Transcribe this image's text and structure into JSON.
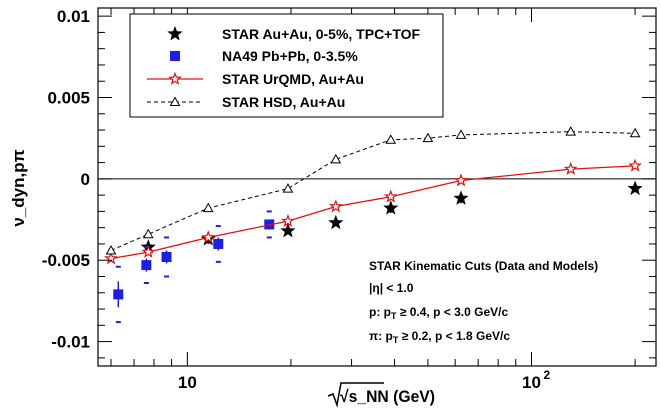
{
  "chart_data": {
    "type": "scatter",
    "title": "",
    "ylabel": "ν_dyn,pπ",
    "xlabel": "√s_NN (GeV)",
    "x_scale": "log",
    "xlim": [
      5.5,
      230
    ],
    "ylim": [
      -0.0115,
      0.0105
    ],
    "x_ticks": [
      {
        "value": 10,
        "label": "10"
      },
      {
        "value": 100,
        "label": "10",
        "exp": "2"
      }
    ],
    "y_ticks": [
      {
        "value": 0.01,
        "label": "0.01"
      },
      {
        "value": 0.005,
        "label": "0.005"
      },
      {
        "value": 0,
        "label": "0"
      },
      {
        "value": -0.005,
        "label": "-0.005"
      },
      {
        "value": -0.01,
        "label": "-0.01"
      }
    ],
    "zero_line": true,
    "legend_position": "top-left",
    "series": [
      {
        "name": "STAR Au+Au, 0-5%, TPC+TOF",
        "marker": "filled-star",
        "color": "#000000",
        "points": [
          {
            "x": 7.7,
            "y": -0.0042,
            "err": 0.0003
          },
          {
            "x": 11.5,
            "y": -0.0037,
            "err": 0.0003
          },
          {
            "x": 19.6,
            "y": -0.0032,
            "err": 0.0002
          },
          {
            "x": 27,
            "y": -0.0027,
            "err": 0.0002
          },
          {
            "x": 39,
            "y": -0.0018,
            "err": 0.0003
          },
          {
            "x": 62.4,
            "y": -0.0012,
            "err": 0.0003
          },
          {
            "x": 200,
            "y": -0.0006,
            "err": 0.0002
          }
        ]
      },
      {
        "name": "NA49 Pb+Pb, 0-3.5%",
        "marker": "filled-square",
        "color": "#1f1fe0",
        "points": [
          {
            "x": 6.3,
            "y": -0.0071,
            "err": 0.0008,
            "sys": 0.0017
          },
          {
            "x": 7.6,
            "y": -0.0053,
            "err": 0.0004,
            "sys": 0.0011
          },
          {
            "x": 8.7,
            "y": -0.0048,
            "err": 0.0004,
            "sys": 0.0012
          },
          {
            "x": 12.3,
            "y": -0.004,
            "err": 0.0004,
            "sys": 0.0011
          },
          {
            "x": 17.3,
            "y": -0.0028,
            "err": 0.0003,
            "sys": 0.0008
          }
        ]
      },
      {
        "name": "STAR UrQMD, Au+Au",
        "marker": "open-star",
        "line": "solid",
        "color": "#e01010",
        "points": [
          {
            "x": 6,
            "y": -0.0049
          },
          {
            "x": 7.7,
            "y": -0.0045
          },
          {
            "x": 11.5,
            "y": -0.0036
          },
          {
            "x": 19.6,
            "y": -0.0026
          },
          {
            "x": 27,
            "y": -0.0017
          },
          {
            "x": 39,
            "y": -0.0011
          },
          {
            "x": 62.4,
            "y": -0.0001
          },
          {
            "x": 130,
            "y": 0.0006
          },
          {
            "x": 200,
            "y": 0.0008
          }
        ]
      },
      {
        "name": "STAR HSD, Au+Au",
        "marker": "open-triangle",
        "line": "dashed",
        "color": "#000000",
        "points": [
          {
            "x": 6,
            "y": -0.0044
          },
          {
            "x": 7.7,
            "y": -0.0034
          },
          {
            "x": 11.5,
            "y": -0.0018
          },
          {
            "x": 19.6,
            "y": -0.0006
          },
          {
            "x": 27,
            "y": 0.0012
          },
          {
            "x": 39,
            "y": 0.0024
          },
          {
            "x": 50,
            "y": 0.0025
          },
          {
            "x": 62.4,
            "y": 0.0027
          },
          {
            "x": 130,
            "y": 0.0029
          },
          {
            "x": 200,
            "y": 0.0028
          }
        ]
      }
    ],
    "annotations": {
      "title": "STAR Kinematic Cuts (Data and Models)",
      "eta_cut": "|η| < 1.0",
      "p_cut": {
        "prefix": "p: p",
        "sub": "T",
        "rest": " ≥ 0.4, p < 3.0 GeV/c"
      },
      "pi_cut": {
        "prefix": "π: p",
        "sub": "T",
        "rest": " ≥ 0.2, p < 1.8 GeV/c"
      }
    }
  }
}
